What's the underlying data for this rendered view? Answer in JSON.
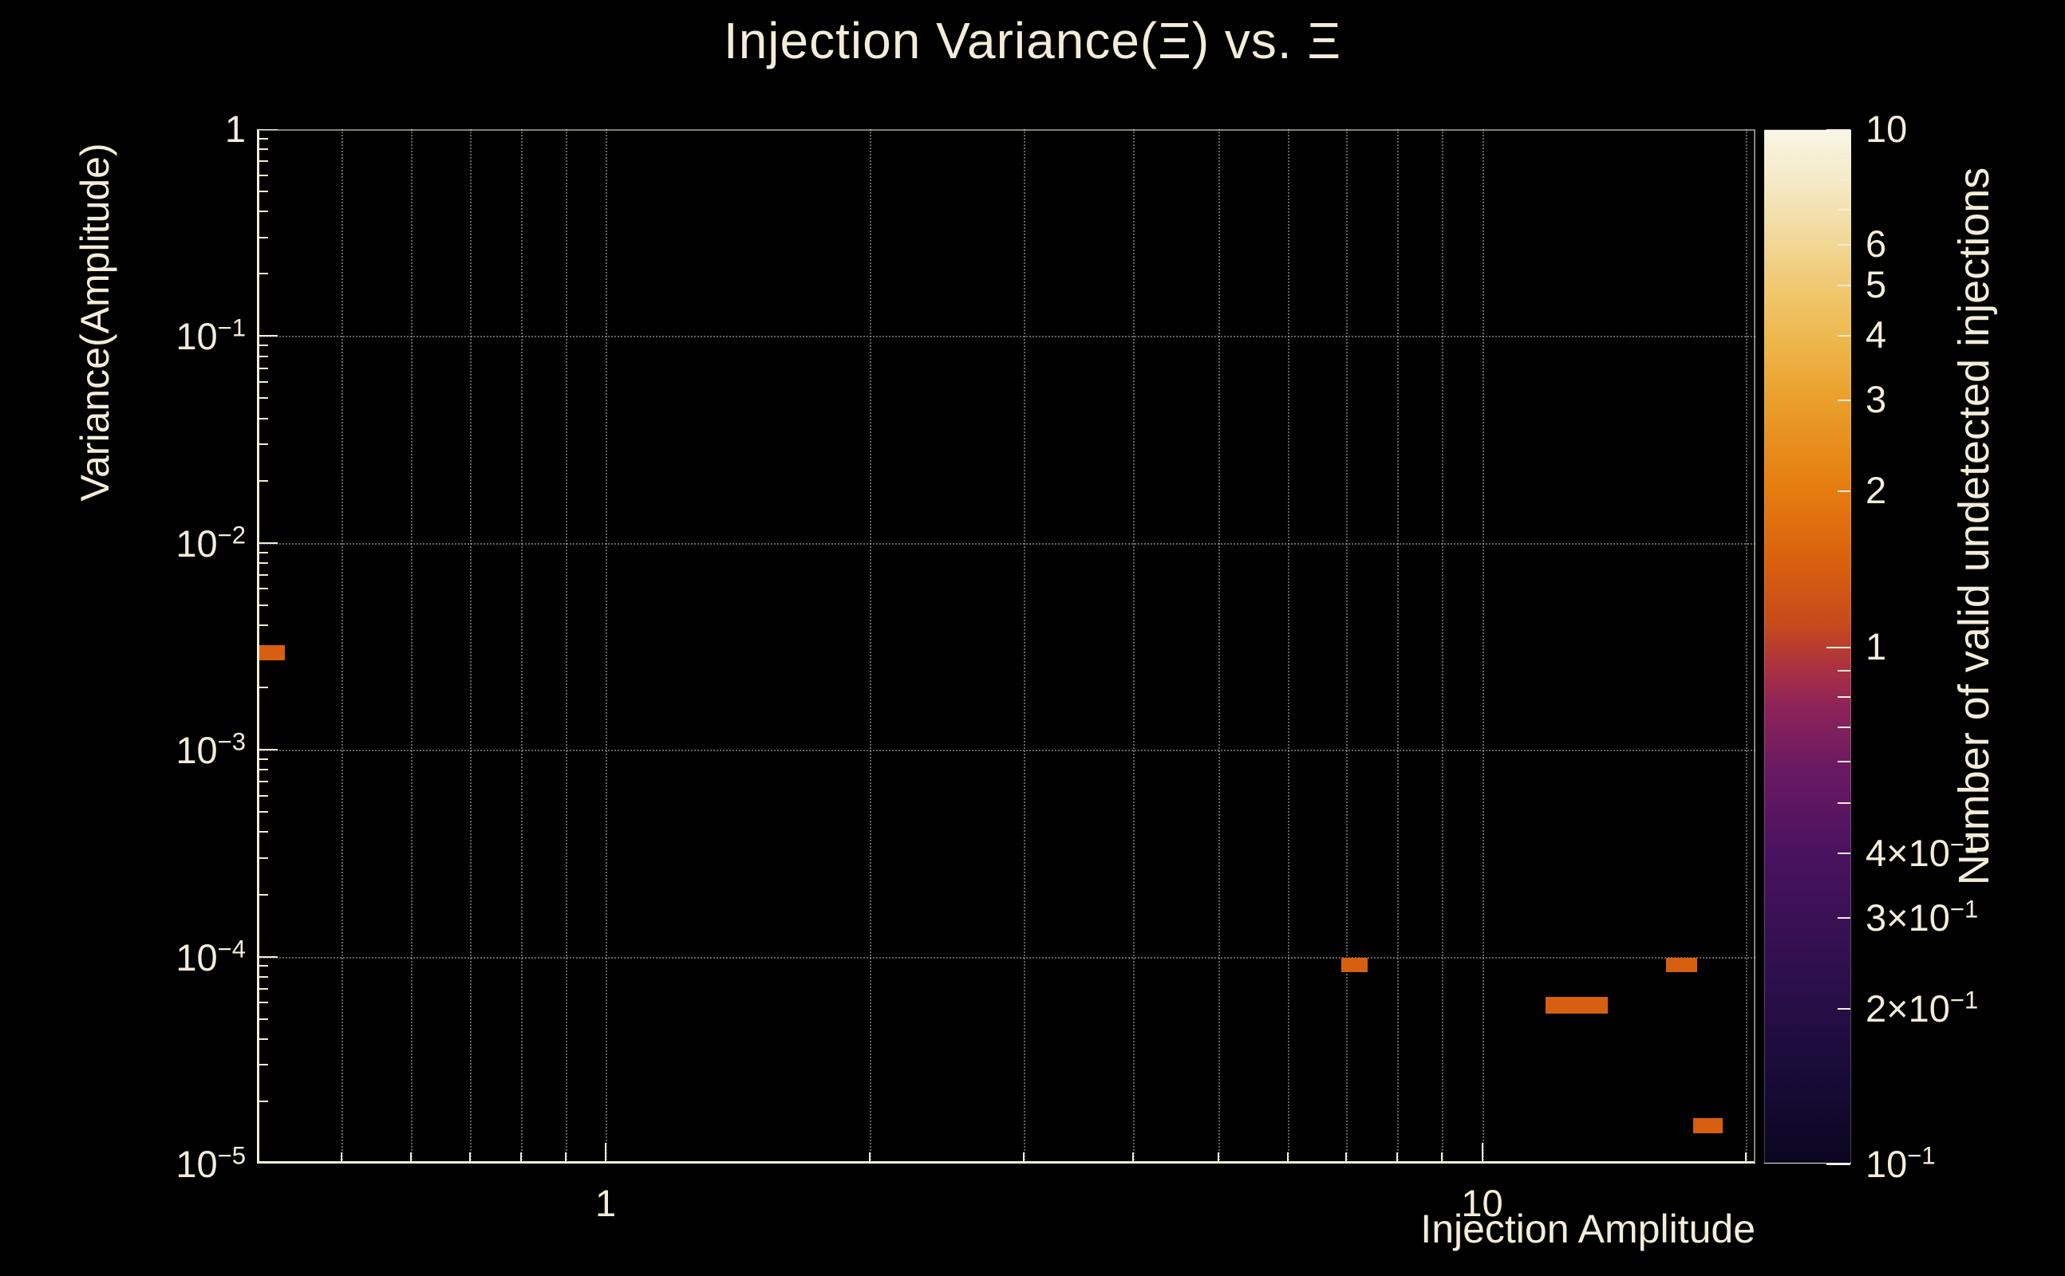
{
  "title": "Injection Variance(Ξ) vs. Ξ",
  "x_axis": {
    "title": "Injection Amplitude"
  },
  "y_axis": {
    "title": "Variance(Amplitude)"
  },
  "colorbar": {
    "title": "Number of valid undetected injections"
  },
  "colors": {
    "background": "#000000",
    "foreground": "#f3ecd8",
    "grid": "#cac6b8",
    "bin": "#d65f10"
  },
  "chart_data": {
    "type": "heatmap",
    "title": "Injection Variance(Ξ) vs. Ξ",
    "xlabel": "Injection Amplitude",
    "ylabel": "Variance(Amplitude)",
    "zlabel": "Number of valid undetected injections",
    "x_scale": "log",
    "y_scale": "log",
    "z_scale": "log",
    "xlim": [
      0.4,
      20.5
    ],
    "ylim": [
      1e-05,
      1
    ],
    "zlim": [
      0.1,
      10
    ],
    "grid": true,
    "x_ticks": [
      {
        "v": 1,
        "label": "1"
      },
      {
        "v": 10,
        "label": "10"
      }
    ],
    "y_ticks": [
      {
        "v": 1,
        "label": "1"
      },
      {
        "v": 0.1,
        "label": "10^−1"
      },
      {
        "v": 0.01,
        "label": "10^−2"
      },
      {
        "v": 0.001,
        "label": "10^−3"
      },
      {
        "v": 0.0001,
        "label": "10^−4"
      },
      {
        "v": 1e-05,
        "label": "10^−5"
      }
    ],
    "z_ticks": [
      {
        "v": 10,
        "label": "10"
      },
      {
        "v": 6,
        "label": "6"
      },
      {
        "v": 5,
        "label": "5"
      },
      {
        "v": 4,
        "label": "4"
      },
      {
        "v": 3,
        "label": "3"
      },
      {
        "v": 2,
        "label": "2"
      },
      {
        "v": 1,
        "label": "1"
      },
      {
        "v": 0.4,
        "label": "4×10^−1"
      },
      {
        "v": 0.3,
        "label": "3×10^−1"
      },
      {
        "v": 0.2,
        "label": "2×10^−1"
      },
      {
        "v": 0.1,
        "label": "10^−1"
      }
    ],
    "bins": [
      {
        "x": [
          0.393,
          0.43
        ],
        "y": [
          0.0027,
          0.0032
        ],
        "count": 1
      },
      {
        "x": [
          6.9,
          7.4
        ],
        "y": [
          8.4e-05,
          9.9e-05
        ],
        "count": 1
      },
      {
        "x": [
          11.8,
          13.9
        ],
        "y": [
          5.3e-05,
          6.4e-05
        ],
        "count": 1
      },
      {
        "x": [
          16.2,
          17.6
        ],
        "y": [
          8.4e-05,
          9.9e-05
        ],
        "count": 1
      },
      {
        "x": [
          17.4,
          18.8
        ],
        "y": [
          1.4e-05,
          1.66e-05
        ],
        "count": 1
      }
    ],
    "bin_value_color": "#d65f10",
    "palette": [
      {
        "pos": 0.0,
        "color": "#0a0620"
      },
      {
        "pos": 0.1,
        "color": "#1c0c3c"
      },
      {
        "pos": 0.2,
        "color": "#31104f"
      },
      {
        "pos": 0.3,
        "color": "#4a125f"
      },
      {
        "pos": 0.38,
        "color": "#691a62"
      },
      {
        "pos": 0.44,
        "color": "#8c235a"
      },
      {
        "pos": 0.48,
        "color": "#ab3140"
      },
      {
        "pos": 0.52,
        "color": "#c64a1c"
      },
      {
        "pos": 0.58,
        "color": "#d95f0e"
      },
      {
        "pos": 0.65,
        "color": "#e57c10"
      },
      {
        "pos": 0.74,
        "color": "#eaa02b"
      },
      {
        "pos": 0.8,
        "color": "#edb94f"
      },
      {
        "pos": 0.85,
        "color": "#f0c973"
      },
      {
        "pos": 0.89,
        "color": "#f2d795"
      },
      {
        "pos": 0.95,
        "color": "#f5e9c6"
      },
      {
        "pos": 1.0,
        "color": "#f9f6e6"
      }
    ]
  }
}
